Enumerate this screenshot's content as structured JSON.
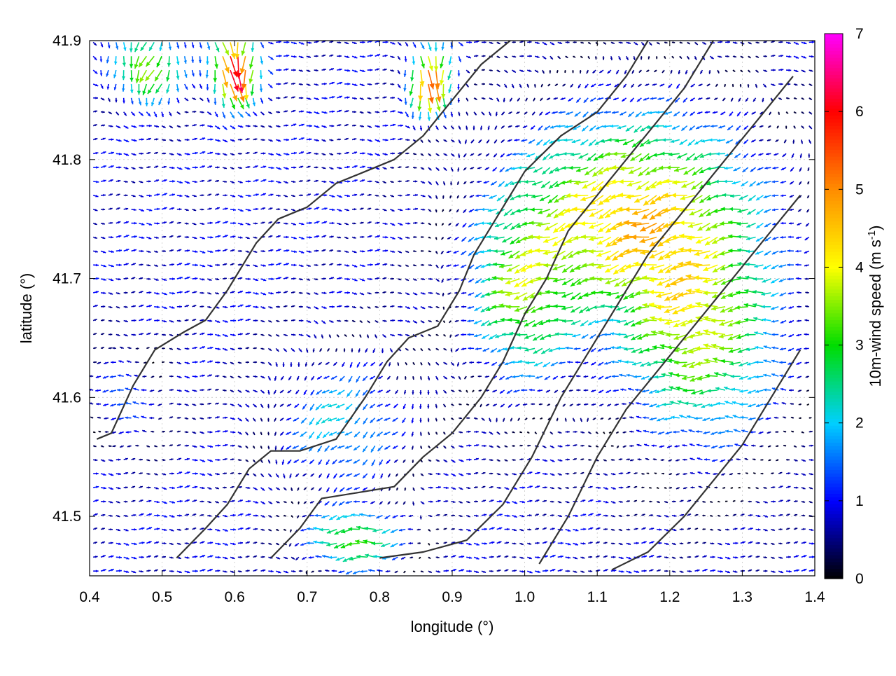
{
  "chart_data": {
    "type": "vector-field",
    "xlabel": "longitude (°)",
    "ylabel": "latitude (°)",
    "xlim": [
      0.4,
      1.4
    ],
    "ylim": [
      41.45,
      41.9
    ],
    "xticks": [
      "0.4",
      "0.5",
      "0.6",
      "0.7",
      "0.8",
      "0.9",
      "1.0",
      "1.1",
      "1.2",
      "1.3",
      "1.4"
    ],
    "yticks": [
      "41.5",
      "41.6",
      "41.7",
      "41.8",
      "41.9"
    ],
    "grid": true,
    "colorbar": {
      "label": "10m-wind speed (m s",
      "label_sup": "-1",
      "label_end": ")",
      "range": [
        0,
        7
      ],
      "ticks": [
        "0",
        "1",
        "2",
        "3",
        "4",
        "5",
        "6",
        "7"
      ],
      "colormap": [
        "#000000",
        "#0000ff",
        "#00d0ff",
        "#00dd00",
        "#ffff00",
        "#ff8c00",
        "#ff0000",
        "#ff00ff"
      ]
    },
    "wind_regions": [
      {
        "lon": 1.15,
        "lat": 41.76,
        "speed": 3.8,
        "direction_deg": 200,
        "spread_lon": 0.18,
        "spread_lat": 0.09
      },
      {
        "lon": 1.25,
        "lat": 41.65,
        "speed": 3.0,
        "direction_deg": 180,
        "spread_lon": 0.12,
        "spread_lat": 0.1
      },
      {
        "lon": 1.0,
        "lat": 41.68,
        "speed": 2.4,
        "direction_deg": 190,
        "spread_lon": 0.08,
        "spread_lat": 0.08
      },
      {
        "lon": 0.77,
        "lat": 41.48,
        "speed": 3.0,
        "direction_deg": 185,
        "spread_lon": 0.07,
        "spread_lat": 0.03
      },
      {
        "lon": 0.6,
        "lat": 41.88,
        "speed": 6.5,
        "direction_deg": 270,
        "spread_lon": 0.03,
        "spread_lat": 0.03
      },
      {
        "lon": 0.87,
        "lat": 41.87,
        "speed": 5.0,
        "direction_deg": 265,
        "spread_lon": 0.03,
        "spread_lat": 0.03
      },
      {
        "lon": 0.48,
        "lat": 41.88,
        "speed": 3.6,
        "direction_deg": 250,
        "spread_lon": 0.05,
        "spread_lat": 0.03
      },
      {
        "lon": 0.45,
        "lat": 41.6,
        "speed": 1.4,
        "direction_deg": 180,
        "spread_lon": 0.05,
        "spread_lat": 0.04
      },
      {
        "lon": 0.75,
        "lat": 41.58,
        "speed": 1.8,
        "direction_deg": 215,
        "spread_lon": 0.1,
        "spread_lat": 0.06
      }
    ],
    "background_wind": {
      "speed": 0.6,
      "direction_deg": 0
    },
    "terrain_contours": [
      [
        [
          0.41,
          41.565
        ],
        [
          0.43,
          41.57
        ],
        [
          0.46,
          41.61
        ],
        [
          0.49,
          41.64
        ],
        [
          0.53,
          41.655
        ],
        [
          0.56,
          41.665
        ],
        [
          0.59,
          41.69
        ],
        [
          0.63,
          41.73
        ],
        [
          0.66,
          41.75
        ],
        [
          0.7,
          41.76
        ],
        [
          0.74,
          41.78
        ],
        [
          0.78,
          41.79
        ],
        [
          0.82,
          41.8
        ],
        [
          0.86,
          41.82
        ],
        [
          0.9,
          41.85
        ],
        [
          0.94,
          41.88
        ],
        [
          0.98,
          41.9
        ]
      ],
      [
        [
          0.52,
          41.465
        ],
        [
          0.56,
          41.49
        ],
        [
          0.59,
          41.51
        ],
        [
          0.62,
          41.54
        ],
        [
          0.65,
          41.555
        ],
        [
          0.69,
          41.555
        ],
        [
          0.74,
          41.565
        ],
        [
          0.78,
          41.6
        ],
        [
          0.81,
          41.63
        ],
        [
          0.84,
          41.65
        ],
        [
          0.88,
          41.66
        ],
        [
          0.91,
          41.69
        ],
        [
          0.93,
          41.72
        ],
        [
          0.96,
          41.75
        ],
        [
          1.0,
          41.79
        ],
        [
          1.05,
          41.82
        ],
        [
          1.1,
          41.84
        ],
        [
          1.14,
          41.87
        ],
        [
          1.17,
          41.9
        ]
      ],
      [
        [
          0.65,
          41.465
        ],
        [
          0.69,
          41.49
        ],
        [
          0.72,
          41.515
        ],
        [
          0.77,
          41.52
        ],
        [
          0.82,
          41.525
        ],
        [
          0.86,
          41.55
        ],
        [
          0.9,
          41.57
        ],
        [
          0.94,
          41.6
        ],
        [
          0.97,
          41.63
        ],
        [
          1.0,
          41.67
        ],
        [
          1.03,
          41.7
        ],
        [
          1.06,
          41.74
        ],
        [
          1.1,
          41.77
        ],
        [
          1.14,
          41.8
        ],
        [
          1.18,
          41.83
        ],
        [
          1.22,
          41.86
        ],
        [
          1.26,
          41.9
        ]
      ],
      [
        [
          0.8,
          41.465
        ],
        [
          0.86,
          41.47
        ],
        [
          0.92,
          41.48
        ],
        [
          0.97,
          41.51
        ],
        [
          1.01,
          41.55
        ],
        [
          1.05,
          41.6
        ],
        [
          1.09,
          41.64
        ],
        [
          1.13,
          41.68
        ],
        [
          1.17,
          41.72
        ],
        [
          1.21,
          41.75
        ],
        [
          1.25,
          41.78
        ],
        [
          1.29,
          41.81
        ],
        [
          1.33,
          41.84
        ],
        [
          1.37,
          41.87
        ]
      ],
      [
        [
          1.02,
          41.46
        ],
        [
          1.06,
          41.5
        ],
        [
          1.1,
          41.55
        ],
        [
          1.14,
          41.59
        ],
        [
          1.18,
          41.62
        ],
        [
          1.22,
          41.65
        ],
        [
          1.26,
          41.68
        ],
        [
          1.3,
          41.71
        ],
        [
          1.34,
          41.74
        ],
        [
          1.38,
          41.77
        ]
      ],
      [
        [
          1.12,
          41.455
        ],
        [
          1.17,
          41.47
        ],
        [
          1.22,
          41.5
        ],
        [
          1.26,
          41.53
        ],
        [
          1.3,
          41.56
        ],
        [
          1.34,
          41.6
        ],
        [
          1.38,
          41.64
        ]
      ]
    ]
  }
}
